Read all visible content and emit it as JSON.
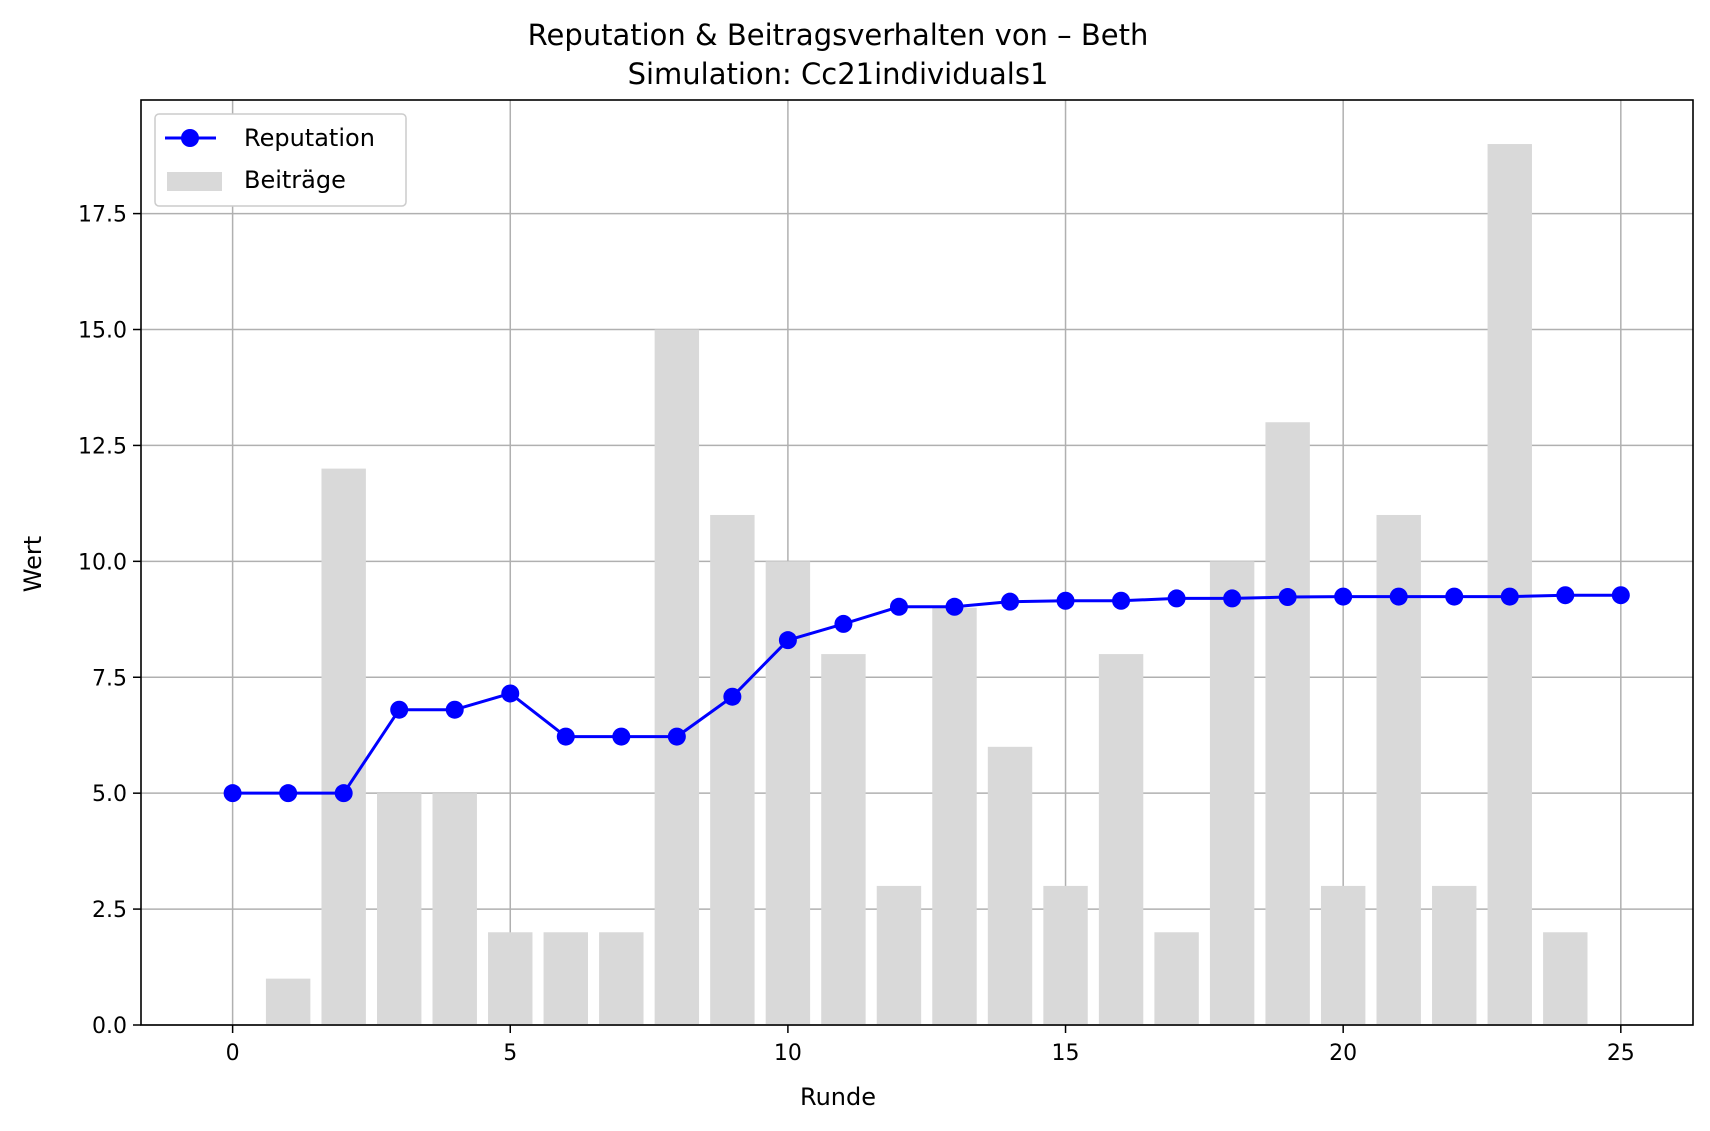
{
  "chart_data": {
    "type": "bar+line",
    "title": "Reputation & Beitragsverhalten von – Beth",
    "subtitle": "Simulation: Cc21individuals1",
    "xlabel": "Runde",
    "ylabel": "Wert",
    "xlim": [
      -1.65,
      26.3
    ],
    "ylim": [
      0,
      19.95
    ],
    "xticks": [
      0,
      5,
      10,
      15,
      20,
      25
    ],
    "yticks": [
      0,
      2.5,
      5,
      7.5,
      10,
      12.5,
      15,
      17.5
    ],
    "ytick_labels": [
      "0.0",
      "2.5",
      "5.0",
      "7.5",
      "10.0",
      "12.5",
      "15.0",
      "17.5"
    ],
    "grid": true,
    "legend_position": "top-left",
    "colors": {
      "reputation": "#0000ff",
      "beitraege": "#d9d9d9"
    },
    "series": [
      {
        "name": "Reputation",
        "type": "line",
        "x": [
          0,
          1,
          2,
          3,
          4,
          5,
          6,
          7,
          8,
          9,
          10,
          11,
          12,
          13,
          14,
          15,
          16,
          17,
          18,
          19,
          20,
          21,
          22,
          23,
          24,
          25
        ],
        "values": [
          5.0,
          5.0,
          5.0,
          6.8,
          6.8,
          7.15,
          6.22,
          6.22,
          6.22,
          7.08,
          8.3,
          8.65,
          9.02,
          9.02,
          9.13,
          9.15,
          9.15,
          9.2,
          9.2,
          9.23,
          9.24,
          9.24,
          9.24,
          9.24,
          9.27,
          9.27
        ]
      },
      {
        "name": "Beiträge",
        "type": "bar",
        "x": [
          0,
          1,
          2,
          3,
          4,
          5,
          6,
          7,
          8,
          9,
          10,
          11,
          12,
          13,
          14,
          15,
          16,
          17,
          18,
          19,
          20,
          21,
          22,
          23,
          24
        ],
        "values": [
          0,
          1,
          12,
          5,
          5,
          2,
          2,
          2,
          15,
          11,
          10,
          8,
          3,
          9,
          6,
          3,
          8,
          2,
          10,
          13,
          3,
          11,
          3,
          19,
          2
        ]
      }
    ]
  }
}
